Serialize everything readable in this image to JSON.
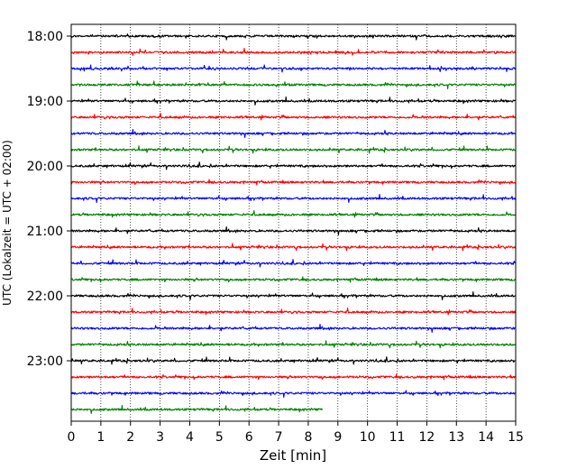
{
  "chart_data": {
    "type": "line",
    "subtype": "helicorder",
    "xlabel": "Zeit  [min]",
    "ylabel": "UTC (Lokalzeit = UTC + 02:00)",
    "xlim": [
      0,
      15
    ],
    "x_ticks": [
      "0",
      "1",
      "2",
      "3",
      "4",
      "5",
      "6",
      "7",
      "8",
      "9",
      "10",
      "11",
      "12",
      "13",
      "14",
      "15"
    ],
    "y_ticks": [
      "18:00",
      "19:00",
      "20:00",
      "21:00",
      "22:00",
      "23:00"
    ],
    "grid": "vertical-dotted",
    "trace_colors": [
      "#000000",
      "#ff0000",
      "#0000ff",
      "#008000"
    ],
    "trace_start_times": [
      "18:00",
      "18:15",
      "18:30",
      "18:45",
      "19:00",
      "19:15",
      "19:30",
      "19:45",
      "20:00",
      "20:15",
      "20:30",
      "20:45",
      "21:00",
      "21:15",
      "21:30",
      "21:45",
      "22:00",
      "22:15",
      "22:30",
      "22:45",
      "23:00",
      "23:15",
      "23:30",
      "23:45"
    ],
    "last_trace_end_min": 8.5
  }
}
